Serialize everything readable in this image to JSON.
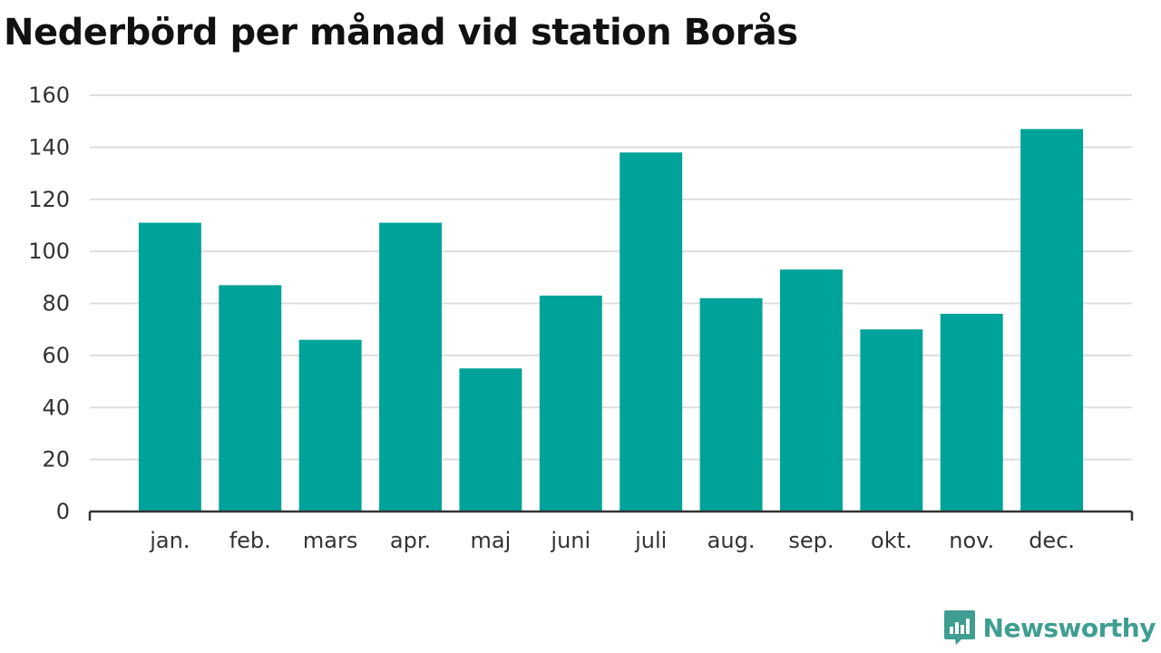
{
  "header": {
    "title": "Nederbörd per månad vid station Borås"
  },
  "chart_data": {
    "type": "bar",
    "title": "Nederbörd per månad vid station Borås",
    "xlabel": "",
    "ylabel": "",
    "categories": [
      "jan.",
      "feb.",
      "mars",
      "apr.",
      "maj",
      "juni",
      "juli",
      "aug.",
      "sep.",
      "okt.",
      "nov.",
      "dec."
    ],
    "values": [
      111,
      87,
      66,
      111,
      55,
      83,
      138,
      82,
      93,
      70,
      76,
      147
    ],
    "ylim": [
      0,
      160
    ],
    "yticks": [
      0,
      20,
      40,
      60,
      80,
      100,
      120,
      140,
      160
    ],
    "grid": true,
    "legend": "none",
    "bar_color": "#00a39a",
    "grid_color": "#dedede",
    "axis_color": "#333333"
  },
  "branding": {
    "name": "Newsworthy",
    "icon": "newsworthy-chart-bubble-icon",
    "color": "#3f9e91"
  }
}
